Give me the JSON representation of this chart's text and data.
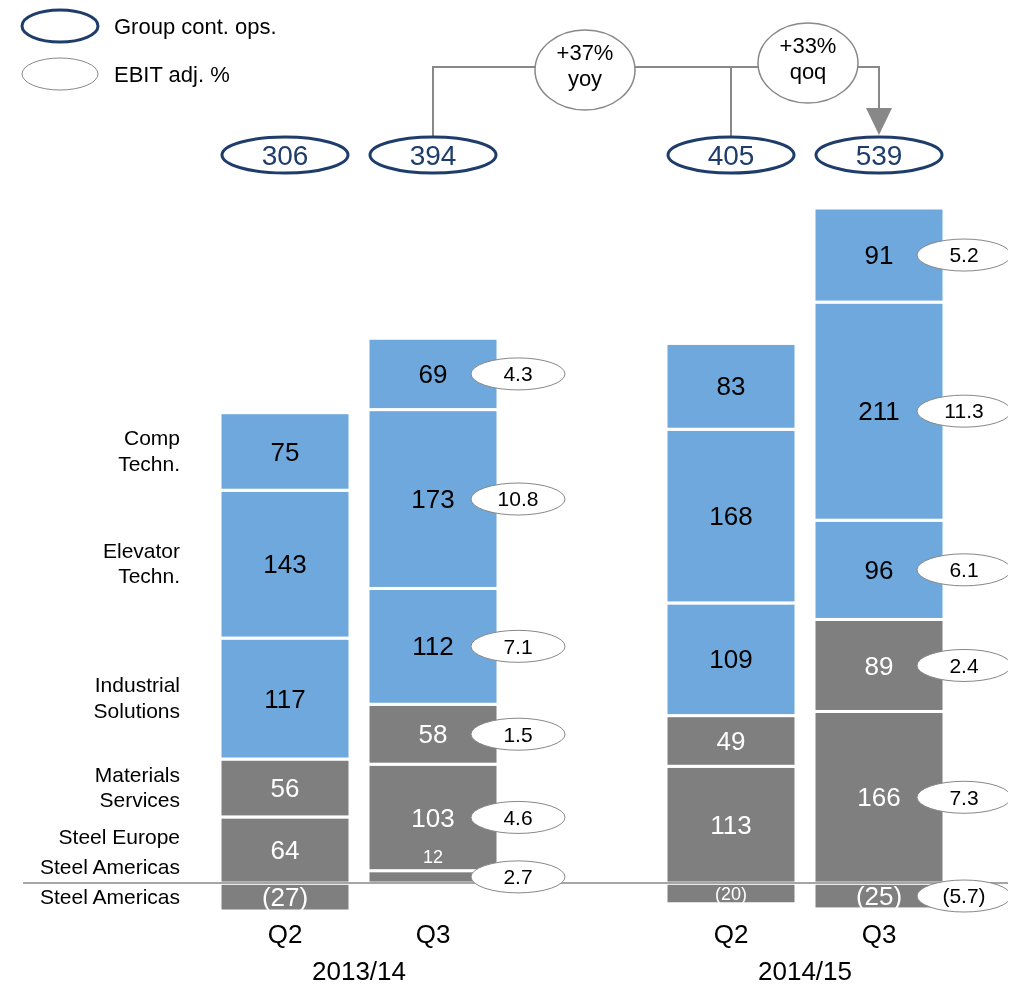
{
  "chart_data": {
    "type": "bar",
    "stacked": true,
    "categories": [
      "Q2",
      "Q3",
      "Q2",
      "Q3"
    ],
    "series": [
      {
        "name": "Steel Americas",
        "color": "#7f7f7f",
        "values": [
          -27,
          12,
          -20,
          -25
        ],
        "value_labels": [
          "(27)",
          "12",
          "(20)",
          "(25)"
        ]
      },
      {
        "name": "Steel Europe",
        "color": "#7f7f7f",
        "values": [
          64,
          103,
          113,
          166
        ],
        "value_labels": [
          "64",
          "103",
          "113",
          "166"
        ]
      },
      {
        "name": "Materials Services",
        "color": "#7f7f7f",
        "values": [
          56,
          58,
          49,
          89
        ],
        "value_labels": [
          "56",
          "58",
          "49",
          "89"
        ]
      },
      {
        "name": "Industrial Solutions",
        "color": "#6fa8dc",
        "values": [
          117,
          112,
          109,
          96
        ],
        "value_labels": [
          "117",
          "112",
          "109",
          "96"
        ]
      },
      {
        "name": "Elevator Techn.",
        "color": "#6fa8dc",
        "values": [
          143,
          173,
          168,
          211
        ],
        "value_labels": [
          "143",
          "173",
          "168",
          "211"
        ]
      },
      {
        "name": "Comp Techn.",
        "color": "#6fa8dc",
        "values": [
          75,
          69,
          83,
          91
        ],
        "value_labels": [
          "75",
          "69",
          "83",
          "91"
        ]
      }
    ],
    "annotations": [
      "Group cont. ops.",
      "EBIT adj. %",
      "Steel Americas",
      "306",
      "394",
      "405",
      "539",
      "+37% yoy",
      "+33% qoq",
      "2013/14",
      "2014/15",
      "4.3",
      "10.8",
      "7.1",
      "1.5",
      "4.6",
      "2.7",
      "5.2",
      "11.3",
      "6.1",
      "2.4",
      "7.3",
      "(5.7)"
    ]
  }
}
